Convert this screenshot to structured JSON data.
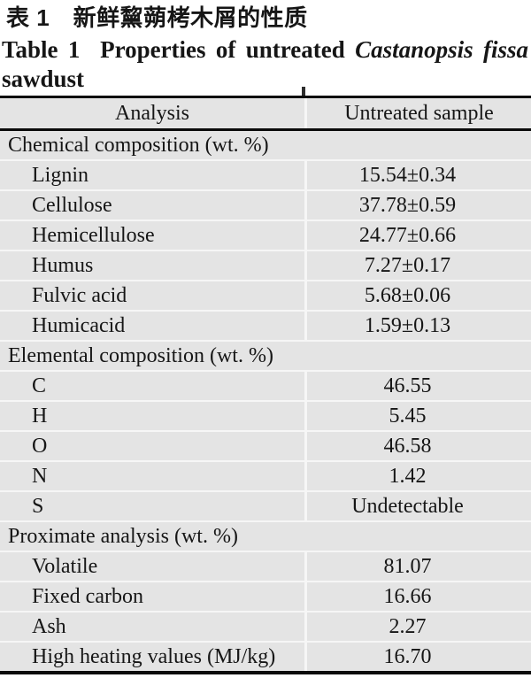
{
  "header": {
    "title_cn": "表 1　新鲜黧蒴栲木屑的性质",
    "title_en_prefix": "Table 1  Properties of untreated",
    "title_en_species": "Castanopsis fissa",
    "title_en_suffix": "sawdust"
  },
  "table": {
    "columns": [
      "Analysis",
      "Untreated sample"
    ],
    "rows": [
      {
        "type": "section",
        "label": "Chemical composition (wt. %)"
      },
      {
        "type": "item",
        "label": "Lignin",
        "value": "15.54±0.34"
      },
      {
        "type": "item",
        "label": "Cellulose",
        "value": "37.78±0.59"
      },
      {
        "type": "item",
        "label": "Hemicellulose",
        "value": "24.77±0.66"
      },
      {
        "type": "item",
        "label": "Humus",
        "value": "7.27±0.17"
      },
      {
        "type": "item",
        "label": "Fulvic acid",
        "value": "5.68±0.06"
      },
      {
        "type": "item",
        "label": "Humicacid",
        "value": "1.59±0.13"
      },
      {
        "type": "section",
        "label": "Elemental composition (wt. %)"
      },
      {
        "type": "item",
        "label": "C",
        "value": "46.55"
      },
      {
        "type": "item",
        "label": "H",
        "value": "5.45"
      },
      {
        "type": "item",
        "label": "O",
        "value": "46.58"
      },
      {
        "type": "item",
        "label": "N",
        "value": "1.42"
      },
      {
        "type": "item",
        "label": "S",
        "value": "Undetectable"
      },
      {
        "type": "section",
        "label": "Proximate analysis (wt. %)"
      },
      {
        "type": "item",
        "label": "Volatile",
        "value": "81.07"
      },
      {
        "type": "item",
        "label": "Fixed carbon",
        "value": "16.66"
      },
      {
        "type": "item",
        "label": "Ash",
        "value": "2.27"
      },
      {
        "type": "item",
        "label": "High heating values (MJ/kg)",
        "value": "16.70"
      }
    ]
  },
  "colors": {
    "page_bg": "#ffffff",
    "cell_bg": "#e4e4e4",
    "gutter": "#f6f6f6",
    "rule": "#0a0a0a",
    "text": "#161616"
  }
}
